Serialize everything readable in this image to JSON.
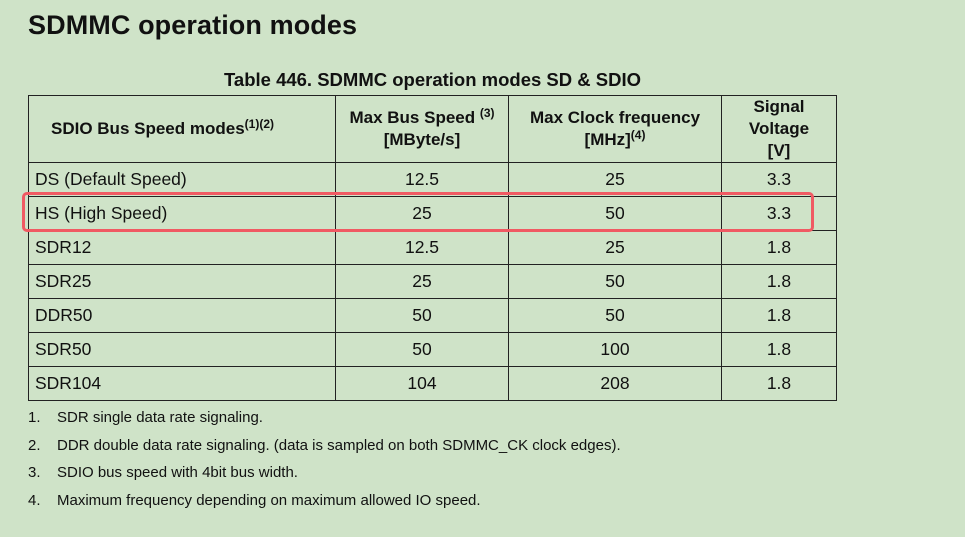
{
  "page_title": "SDMMC operation modes",
  "table": {
    "caption": "Table 446. SDMMC operation modes SD & SDIO",
    "headers": [
      {
        "line1": "SDIO Bus Speed modes",
        "line2": "",
        "sup": "(1)(2)"
      },
      {
        "line1": "Max Bus Speed",
        "line2": "[MByte/s]",
        "sup": "(3)"
      },
      {
        "line1": "Max Clock frequency",
        "line2": "[MHz]",
        "sup": "(4)"
      },
      {
        "line1": "Signal Voltage",
        "line2": "[V]",
        "sup": ""
      }
    ],
    "rows": [
      [
        "DS (Default Speed)",
        "12.5",
        "25",
        "3.3"
      ],
      [
        "HS (High Speed)",
        "25",
        "50",
        "3.3"
      ],
      [
        "SDR12",
        "12.5",
        "25",
        "1.8"
      ],
      [
        "SDR25",
        "25",
        "50",
        "1.8"
      ],
      [
        "DDR50",
        "50",
        "50",
        "1.8"
      ],
      [
        "SDR50",
        "50",
        "100",
        "1.8"
      ],
      [
        "SDR104",
        "104",
        "208",
        "1.8"
      ]
    ],
    "highlighted_row": "HS (High Speed)",
    "highlight_color": "#f05a63"
  },
  "notes": [
    {
      "num": "1.",
      "text": "SDR single data rate signaling."
    },
    {
      "num": "2.",
      "text": "DDR double data rate signaling. (data is sampled on both SDMMC_CK clock edges)."
    },
    {
      "num": "3.",
      "text": "SDIO bus speed with 4bit bus width."
    },
    {
      "num": "4.",
      "text": "Maximum frequency depending on maximum allowed IO speed."
    }
  ]
}
